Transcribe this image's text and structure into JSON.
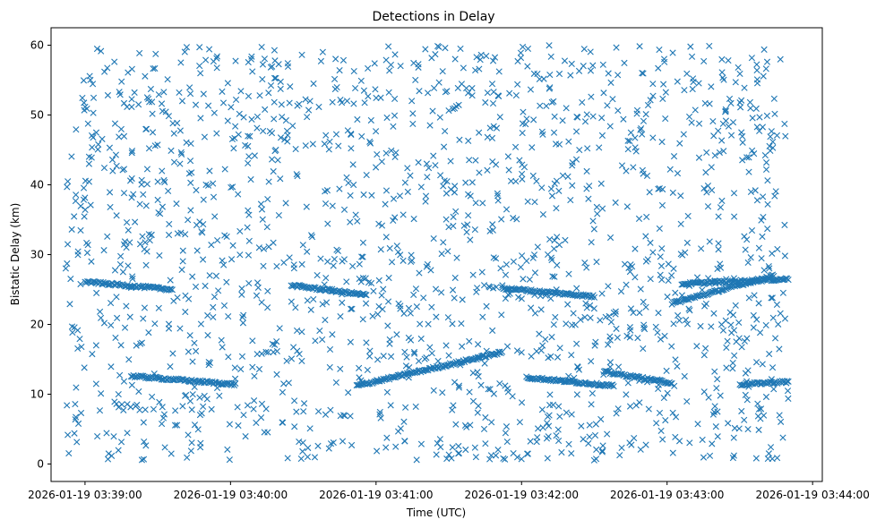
{
  "chart_data": {
    "type": "scatter",
    "title": "Detections in Delay",
    "xlabel": "Time (UTC)",
    "ylabel": "Bistatic Delay (km)",
    "marker": "x",
    "color": "#1f77b4",
    "grid": false,
    "x_range": [
      "2026-01-19 03:38:46",
      "2026-01-19 03:44:04"
    ],
    "ylim": [
      -2.5,
      62.5
    ],
    "x_ticks": [
      "2026-01-19 03:39:00",
      "2026-01-19 03:40:00",
      "2026-01-19 03:41:00",
      "2026-01-19 03:42:00",
      "2026-01-19 03:43:00",
      "2026-01-19 03:44:00"
    ],
    "y_ticks": [
      0,
      10,
      20,
      30,
      40,
      50,
      60
    ],
    "noise": {
      "x_span": [
        "2026-01-19 03:38:52",
        "2026-01-19 03:43:50"
      ],
      "y_span": [
        0.5,
        60
      ],
      "count": 1700
    },
    "tracks": [
      {
        "x_start": "2026-01-19 03:39:00",
        "x_end": "2026-01-19 03:39:36",
        "y_start": 26.1,
        "y_end": 25.0
      },
      {
        "x_start": "2026-01-19 03:39:19",
        "x_end": "2026-01-19 03:40:02",
        "y_start": 12.6,
        "y_end": 11.4
      },
      {
        "x_start": "2026-01-19 03:40:25",
        "x_end": "2026-01-19 03:40:56",
        "y_start": 25.6,
        "y_end": 24.2
      },
      {
        "x_start": "2026-01-19 03:40:52",
        "x_end": "2026-01-19 03:41:52",
        "y_start": 11.2,
        "y_end": 16.0
      },
      {
        "x_start": "2026-01-19 03:41:52",
        "x_end": "2026-01-19 03:42:30",
        "y_start": 25.2,
        "y_end": 24.0
      },
      {
        "x_start": "2026-01-19 03:42:02",
        "x_end": "2026-01-19 03:42:38",
        "y_start": 12.4,
        "y_end": 11.2
      },
      {
        "x_start": "2026-01-19 03:42:34",
        "x_end": "2026-01-19 03:43:02",
        "y_start": 13.2,
        "y_end": 11.6
      },
      {
        "x_start": "2026-01-19 03:43:02",
        "x_end": "2026-01-19 03:43:44",
        "y_start": 23.0,
        "y_end": 27.0
      },
      {
        "x_start": "2026-01-19 03:43:06",
        "x_end": "2026-01-19 03:43:50",
        "y_start": 25.8,
        "y_end": 26.5
      },
      {
        "x_start": "2026-01-19 03:43:30",
        "x_end": "2026-01-19 03:43:50",
        "y_start": 11.4,
        "y_end": 11.8
      }
    ]
  }
}
